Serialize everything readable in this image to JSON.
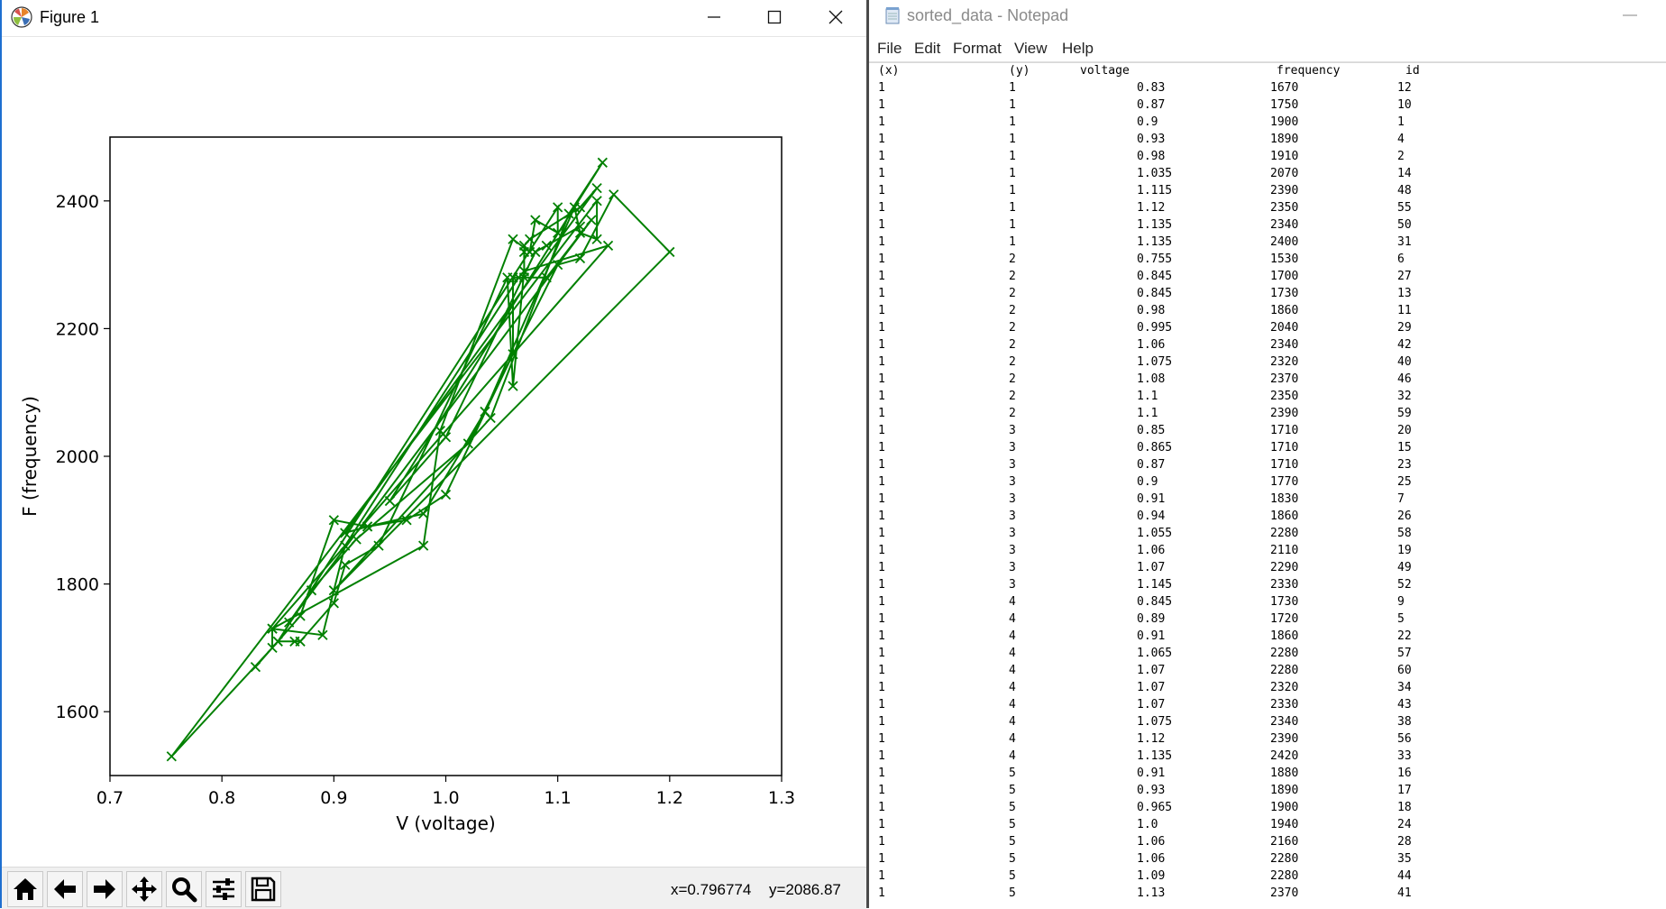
{
  "figure_window": {
    "title": "Figure 1",
    "toolbar_icons": [
      "home-icon",
      "back-arrow-icon",
      "forward-arrow-icon",
      "pan-icon",
      "zoom-icon",
      "configure-subplots-icon",
      "save-icon"
    ],
    "coords": {
      "x": "x=0.796774",
      "y": "y=2086.87"
    }
  },
  "chart_data": {
    "type": "line",
    "xlabel": "V (voltage)",
    "ylabel": "F (frequency)",
    "xlim": [
      0.7,
      1.3
    ],
    "ylim": [
      1500,
      2500
    ],
    "xticks": [
      "0.7",
      "0.8",
      "0.9",
      "1.0",
      "1.1",
      "1.2",
      "1.3"
    ],
    "yticks": [
      "1600",
      "1800",
      "2000",
      "2200",
      "2400"
    ],
    "color": "#008000",
    "marker": "x",
    "grid": false,
    "series": [
      {
        "points": [
          [
            0.83,
            1670
          ],
          [
            0.87,
            1750
          ],
          [
            0.9,
            1900
          ],
          [
            0.93,
            1890
          ],
          [
            0.98,
            1910
          ],
          [
            1.035,
            2070
          ],
          [
            1.115,
            2390
          ],
          [
            1.12,
            2350
          ],
          [
            1.135,
            2340
          ],
          [
            1.135,
            2400
          ],
          [
            0.755,
            1530
          ],
          [
            0.845,
            1700
          ],
          [
            0.845,
            1730
          ],
          [
            0.98,
            1860
          ],
          [
            0.995,
            2040
          ],
          [
            1.06,
            2340
          ],
          [
            1.075,
            2320
          ],
          [
            1.08,
            2370
          ],
          [
            1.1,
            2350
          ],
          [
            1.1,
            2390
          ],
          [
            0.85,
            1710
          ],
          [
            0.865,
            1710
          ],
          [
            0.87,
            1710
          ],
          [
            0.9,
            1770
          ],
          [
            0.91,
            1830
          ],
          [
            0.94,
            1860
          ],
          [
            1.055,
            2280
          ],
          [
            1.06,
            2110
          ],
          [
            1.07,
            2290
          ],
          [
            1.145,
            2330
          ],
          [
            0.845,
            1730
          ],
          [
            0.89,
            1720
          ],
          [
            0.91,
            1860
          ],
          [
            1.065,
            2280
          ],
          [
            1.07,
            2280
          ],
          [
            1.07,
            2320
          ],
          [
            1.07,
            2330
          ],
          [
            1.075,
            2340
          ],
          [
            1.12,
            2390
          ],
          [
            1.135,
            2420
          ],
          [
            0.91,
            1880
          ],
          [
            0.93,
            1890
          ],
          [
            0.965,
            1900
          ],
          [
            1.0,
            1940
          ],
          [
            1.06,
            2160
          ],
          [
            1.06,
            2280
          ],
          [
            1.09,
            2280
          ],
          [
            1.13,
            2370
          ],
          [
            0.86,
            1740
          ],
          [
            0.88,
            1790
          ],
          [
            0.92,
            1870
          ],
          [
            1.02,
            2020
          ],
          [
            1.1,
            2300
          ],
          [
            1.12,
            2310
          ],
          [
            1.15,
            2410
          ],
          [
            1.2,
            2320
          ],
          [
            0.9,
            1790
          ],
          [
            1.04,
            2060
          ],
          [
            1.11,
            2380
          ],
          [
            1.14,
            2460
          ],
          [
            0.95,
            1930
          ],
          [
            1.0,
            2030
          ],
          [
            1.08,
            2320
          ],
          [
            1.12,
            2360
          ],
          [
            1.09,
            2330
          ]
        ]
      }
    ]
  },
  "notepad": {
    "title": "sorted_data - Notepad",
    "menu": [
      "File",
      "Edit",
      "Format",
      "View",
      "Help"
    ],
    "header": {
      "x": "(x)",
      "y": "(y)",
      "voltage": "voltage",
      "frequency": "frequency",
      "id": "id"
    },
    "rows": [
      [
        "1",
        "1",
        "0.83",
        "1670",
        "12"
      ],
      [
        "1",
        "1",
        "0.87",
        "1750",
        "10"
      ],
      [
        "1",
        "1",
        "0.9",
        "1900",
        "1"
      ],
      [
        "1",
        "1",
        "0.93",
        "1890",
        "4"
      ],
      [
        "1",
        "1",
        "0.98",
        "1910",
        "2"
      ],
      [
        "1",
        "1",
        "1.035",
        "2070",
        "14"
      ],
      [
        "1",
        "1",
        "1.115",
        "2390",
        "48"
      ],
      [
        "1",
        "1",
        "1.12",
        "2350",
        "55"
      ],
      [
        "1",
        "1",
        "1.135",
        "2340",
        "50"
      ],
      [
        "1",
        "1",
        "1.135",
        "2400",
        "31"
      ],
      [
        "1",
        "2",
        "0.755",
        "1530",
        "6"
      ],
      [
        "1",
        "2",
        "0.845",
        "1700",
        "27"
      ],
      [
        "1",
        "2",
        "0.845",
        "1730",
        "13"
      ],
      [
        "1",
        "2",
        "0.98",
        "1860",
        "11"
      ],
      [
        "1",
        "2",
        "0.995",
        "2040",
        "29"
      ],
      [
        "1",
        "2",
        "1.06",
        "2340",
        "42"
      ],
      [
        "1",
        "2",
        "1.075",
        "2320",
        "40"
      ],
      [
        "1",
        "2",
        "1.08",
        "2370",
        "46"
      ],
      [
        "1",
        "2",
        "1.1",
        "2350",
        "32"
      ],
      [
        "1",
        "2",
        "1.1",
        "2390",
        "59"
      ],
      [
        "1",
        "3",
        "0.85",
        "1710",
        "20"
      ],
      [
        "1",
        "3",
        "0.865",
        "1710",
        "15"
      ],
      [
        "1",
        "3",
        "0.87",
        "1710",
        "23"
      ],
      [
        "1",
        "3",
        "0.9",
        "1770",
        "25"
      ],
      [
        "1",
        "3",
        "0.91",
        "1830",
        "7"
      ],
      [
        "1",
        "3",
        "0.94",
        "1860",
        "26"
      ],
      [
        "1",
        "3",
        "1.055",
        "2280",
        "58"
      ],
      [
        "1",
        "3",
        "1.06",
        "2110",
        "19"
      ],
      [
        "1",
        "3",
        "1.07",
        "2290",
        "49"
      ],
      [
        "1",
        "3",
        "1.145",
        "2330",
        "52"
      ],
      [
        "1",
        "4",
        "0.845",
        "1730",
        "9"
      ],
      [
        "1",
        "4",
        "0.89",
        "1720",
        "5"
      ],
      [
        "1",
        "4",
        "0.91",
        "1860",
        "22"
      ],
      [
        "1",
        "4",
        "1.065",
        "2280",
        "57"
      ],
      [
        "1",
        "4",
        "1.07",
        "2280",
        "60"
      ],
      [
        "1",
        "4",
        "1.07",
        "2320",
        "34"
      ],
      [
        "1",
        "4",
        "1.07",
        "2330",
        "43"
      ],
      [
        "1",
        "4",
        "1.075",
        "2340",
        "38"
      ],
      [
        "1",
        "4",
        "1.12",
        "2390",
        "56"
      ],
      [
        "1",
        "4",
        "1.135",
        "2420",
        "33"
      ],
      [
        "1",
        "5",
        "0.91",
        "1880",
        "16"
      ],
      [
        "1",
        "5",
        "0.93",
        "1890",
        "17"
      ],
      [
        "1",
        "5",
        "0.965",
        "1900",
        "18"
      ],
      [
        "1",
        "5",
        "1.0",
        "1940",
        "24"
      ],
      [
        "1",
        "5",
        "1.06",
        "2160",
        "28"
      ],
      [
        "1",
        "5",
        "1.06",
        "2280",
        "35"
      ],
      [
        "1",
        "5",
        "1.09",
        "2280",
        "44"
      ],
      [
        "1",
        "5",
        "1.13",
        "2370",
        "41"
      ]
    ]
  }
}
